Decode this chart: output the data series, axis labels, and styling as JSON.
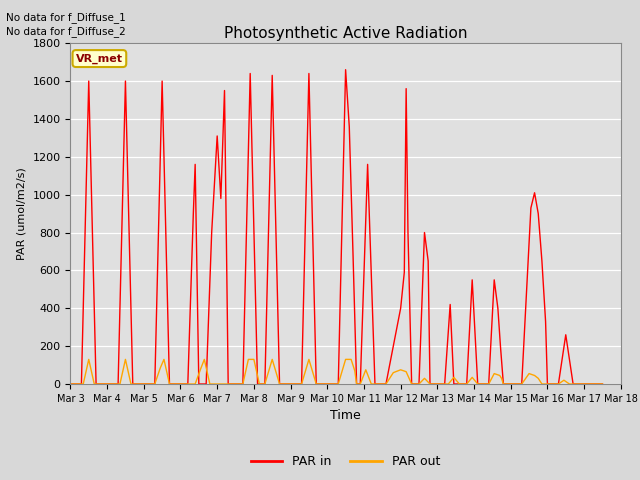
{
  "title": "Photosynthetic Active Radiation",
  "xlabel": "Time",
  "ylabel": "PAR (umol/m2/s)",
  "ylim": [
    0,
    1800
  ],
  "xlim": [
    0,
    15
  ],
  "fig_facecolor": "#d8d8d8",
  "ax_facecolor": "#e0e0e0",
  "annotations": [
    "No data for f_Diffuse_1",
    "No data for f_Diffuse_2"
  ],
  "legend_label1": "PAR in",
  "legend_label2": "PAR out",
  "legend_color1": "#ff0000",
  "legend_color2": "#ffa500",
  "vr_met_label": "VR_met",
  "x_tick_labels": [
    "Mar 3",
    "Mar 4",
    "Mar 5",
    "Mar 6",
    "Mar 7",
    "Mar 8",
    "Mar 9",
    "Mar 10",
    "Mar 11",
    "Mar 12",
    "Mar 13",
    "Mar 14",
    "Mar 15",
    "Mar 16",
    "Mar 17",
    "Mar 18"
  ],
  "par_in": [
    0,
    0,
    0.3,
    0,
    0.5,
    1600,
    0.7,
    0,
    1.3,
    0,
    1.5,
    1600,
    1.7,
    0,
    2.3,
    0,
    2.5,
    1600,
    2.7,
    0,
    3.2,
    0,
    3.35,
    900,
    3.4,
    1160,
    3.5,
    0,
    3.7,
    0,
    3.85,
    800,
    4.0,
    1310,
    4.1,
    980,
    4.2,
    1550,
    4.3,
    0,
    4.7,
    0,
    4.9,
    1640,
    5.1,
    0,
    5.3,
    0,
    5.5,
    1630,
    5.7,
    0,
    6.3,
    0,
    6.5,
    1640,
    6.7,
    0,
    7.3,
    0,
    7.5,
    1660,
    7.6,
    1360,
    7.7,
    700,
    7.8,
    0,
    7.9,
    0,
    8.1,
    1160,
    8.3,
    0,
    8.6,
    0,
    9.0,
    400,
    9.1,
    590,
    9.15,
    1560,
    9.2,
    800,
    9.3,
    0,
    9.5,
    0,
    9.65,
    800,
    9.75,
    650,
    9.8,
    0,
    10.2,
    0,
    10.35,
    420,
    10.45,
    0,
    10.8,
    0,
    10.95,
    550,
    11.1,
    0,
    11.4,
    0,
    11.55,
    550,
    11.65,
    400,
    11.72,
    200,
    11.8,
    0,
    12.3,
    0,
    12.55,
    930,
    12.65,
    1010,
    12.75,
    900,
    12.85,
    650,
    12.95,
    330,
    13.0,
    0,
    13.3,
    0,
    13.5,
    260,
    13.7,
    0,
    14.5,
    0
  ],
  "par_out": [
    0,
    0,
    0.35,
    0,
    0.5,
    130,
    0.65,
    0,
    1.35,
    0,
    1.5,
    130,
    1.65,
    0,
    2.3,
    0,
    2.45,
    85,
    2.55,
    130,
    2.7,
    0,
    3.4,
    0,
    3.55,
    80,
    3.65,
    130,
    3.8,
    0,
    4.7,
    0,
    4.85,
    130,
    5.0,
    130,
    5.15,
    0,
    5.3,
    0,
    5.5,
    130,
    5.7,
    0,
    6.3,
    0,
    6.5,
    130,
    6.7,
    0,
    7.3,
    0,
    7.5,
    130,
    7.65,
    130,
    7.75,
    70,
    7.8,
    0,
    7.9,
    0,
    8.05,
    75,
    8.2,
    0,
    8.6,
    0,
    8.8,
    60,
    9.0,
    75,
    9.15,
    65,
    9.3,
    0,
    9.5,
    0,
    9.65,
    30,
    9.8,
    0,
    10.3,
    0,
    10.45,
    35,
    10.6,
    0,
    10.8,
    0,
    10.95,
    35,
    11.1,
    0,
    11.4,
    0,
    11.55,
    55,
    11.7,
    45,
    11.75,
    30,
    11.8,
    0,
    12.3,
    0,
    12.5,
    55,
    12.65,
    45,
    12.75,
    30,
    12.85,
    0,
    13.3,
    0,
    13.45,
    20,
    13.6,
    0,
    14.5,
    0
  ]
}
